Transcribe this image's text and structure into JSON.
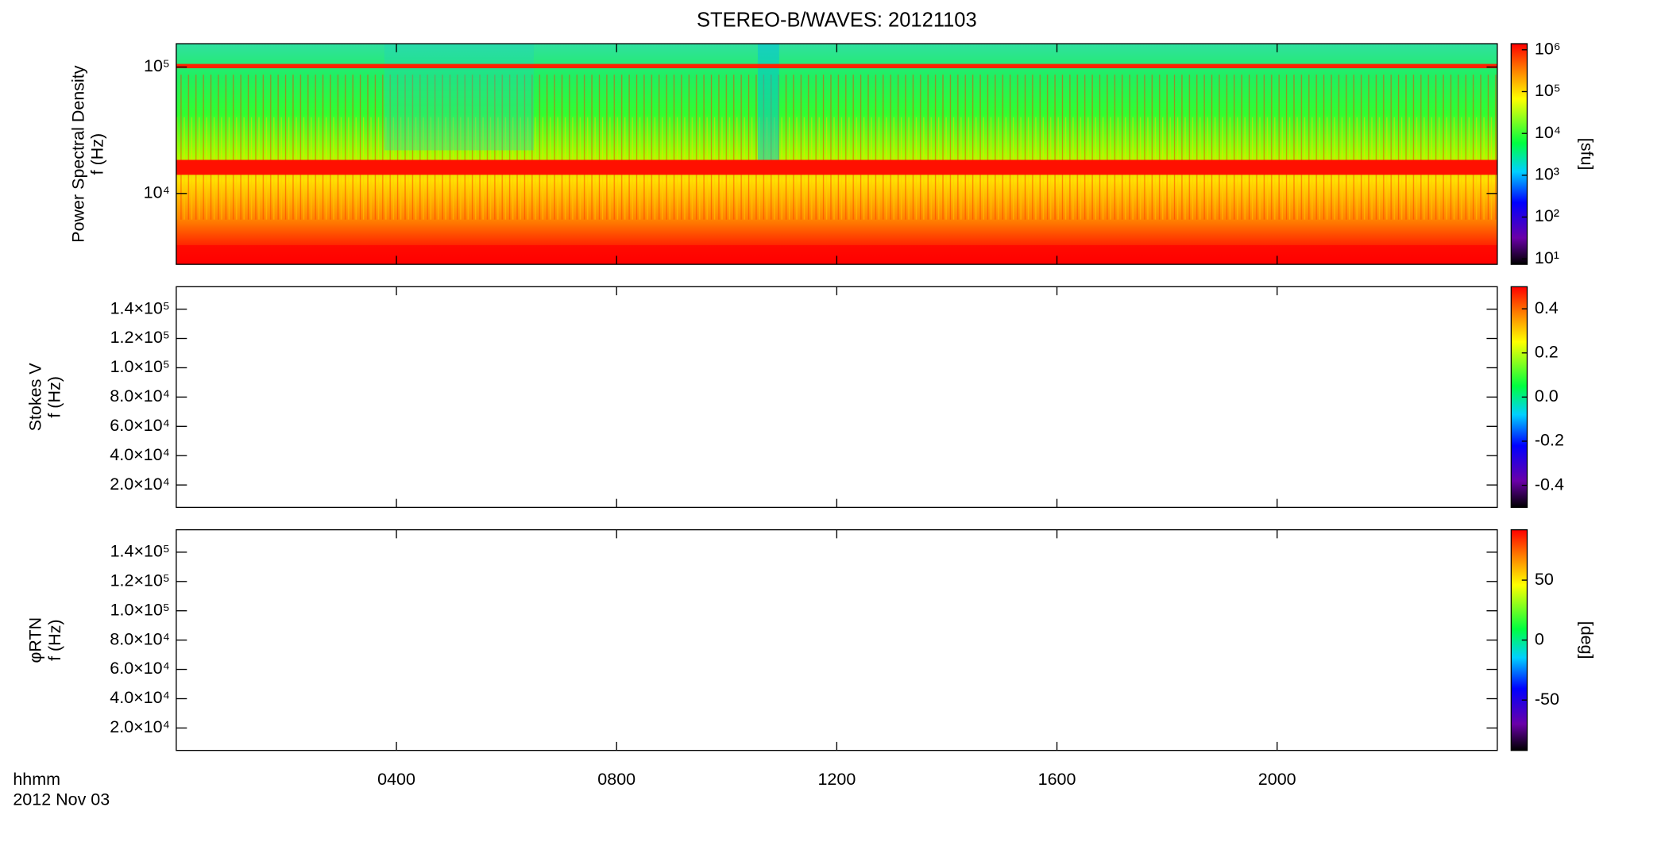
{
  "chart_data": [
    {
      "type": "spectrogram",
      "title": "STEREO-B/WAVES: 20121103",
      "ylabel": [
        "Power Spectral Density",
        "f (Hz)"
      ],
      "xlim": [
        0,
        24
      ],
      "ylim": [
        2750,
        153000
      ],
      "log_y": true,
      "yticks": [
        {
          "value": 10000,
          "label": "10⁴"
        },
        {
          "value": 100000,
          "label": "10⁵"
        }
      ],
      "colorbar": {
        "zlim": [
          7.4,
          1400000
        ],
        "log": true,
        "label": "[sfu]",
        "ticks": [
          {
            "value": 10,
            "label": "10¹"
          },
          {
            "value": 100,
            "label": "10²"
          },
          {
            "value": 1000,
            "label": "10³"
          },
          {
            "value": 10000,
            "label": "10⁴"
          },
          {
            "value": 100000,
            "label": "10⁵"
          },
          {
            "value": 1000000,
            "label": "10⁶"
          }
        ]
      }
    },
    {
      "type": "spectrogram",
      "ylabel": [
        "Stokes V",
        "f (Hz)"
      ],
      "xlim": [
        0,
        24
      ],
      "ylim": [
        4700,
        155300
      ],
      "log_y": false,
      "yticks": [
        {
          "value": 20000,
          "label": "2.0×10⁴"
        },
        {
          "value": 40000,
          "label": "4.0×10⁴"
        },
        {
          "value": 60000,
          "label": "6.0×10⁴"
        },
        {
          "value": 80000,
          "label": "8.0×10⁴"
        },
        {
          "value": 100000,
          "label": "1.0×10⁵"
        },
        {
          "value": 120000,
          "label": "1.2×10⁵"
        },
        {
          "value": 140000,
          "label": "1.4×10⁵"
        }
      ],
      "colorbar": {
        "zlim": [
          -0.5,
          0.5
        ],
        "log": false,
        "ticks": [
          {
            "value": -0.4,
            "label": "-0.4"
          },
          {
            "value": -0.2,
            "label": "-0.2"
          },
          {
            "value": 0,
            "label": "0.0"
          },
          {
            "value": 0.2,
            "label": "0.2"
          },
          {
            "value": 0.4,
            "label": "0.4"
          }
        ]
      }
    },
    {
      "type": "spectrogram",
      "ylabel": [
        "φRTN",
        "f (Hz)"
      ],
      "xlim": [
        0,
        24
      ],
      "ylim": [
        4700,
        155300
      ],
      "log_y": false,
      "yticks": [
        {
          "value": 20000,
          "label": "2.0×10⁴"
        },
        {
          "value": 40000,
          "label": "4.0×10⁴"
        },
        {
          "value": 60000,
          "label": "6.0×10⁴"
        },
        {
          "value": 80000,
          "label": "8.0×10⁴"
        },
        {
          "value": 100000,
          "label": "1.0×10⁵"
        },
        {
          "value": 120000,
          "label": "1.2×10⁵"
        },
        {
          "value": 140000,
          "label": "1.4×10⁵"
        }
      ],
      "colorbar": {
        "zlim": [
          -92,
          92
        ],
        "log": false,
        "label": "[deg]",
        "ticks": [
          -50,
          0,
          50
        ]
      },
      "xlabel": "hhmm",
      "date": "2012 Nov 03",
      "xticks": [
        {
          "value": 4,
          "label": "0400"
        },
        {
          "value": 8,
          "label": "0800"
        },
        {
          "value": 12,
          "label": "1200"
        },
        {
          "value": 16,
          "label": "1600"
        },
        {
          "value": 20,
          "label": "2000"
        }
      ]
    }
  ]
}
